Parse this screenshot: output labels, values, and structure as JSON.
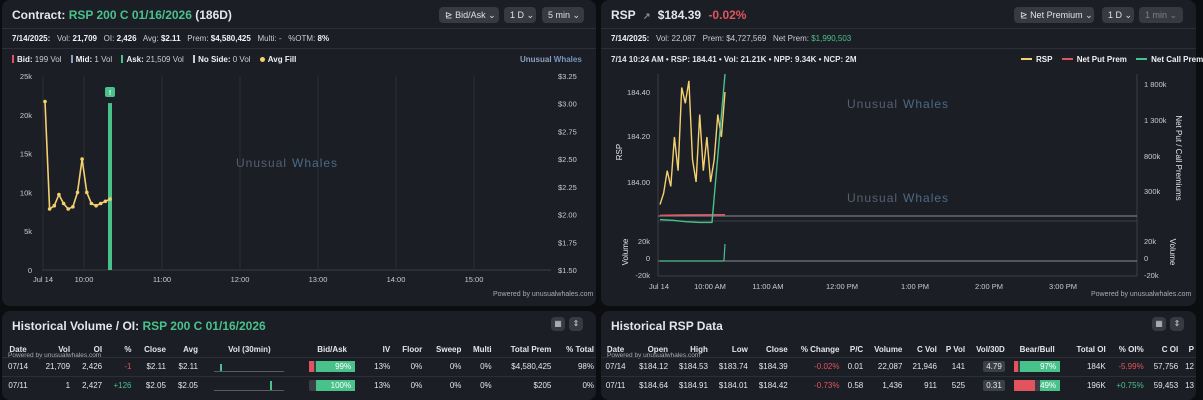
{
  "left_panel": {
    "title_prefix": "Contract:",
    "contract": "RSP 200 C 01/16/2026",
    "dte": "(186D)",
    "controls": {
      "price_type": "Bid/Ask",
      "range": "1 D",
      "interval": "5 min"
    },
    "stats": {
      "date": "7/14/2025:",
      "vol_label": "Vol:",
      "vol": "21,709",
      "oi_label": "OI:",
      "oi": "2,426",
      "avg_label": "Avg:",
      "avg": "$2.11",
      "prem_label": "Prem:",
      "prem": "$4,580,425",
      "multi_label": "Multi:",
      "multi": "-",
      "otm_label": "%OTM:",
      "otm": "8%"
    },
    "legend": {
      "bid_label": "Bid:",
      "bid": "199 Vol",
      "mid_label": "Mid:",
      "mid": "1 Vol",
      "ask_label": "Ask:",
      "ask": "21,509 Vol",
      "noside_label": "No Side:",
      "noside": "0 Vol",
      "avgfill": "Avg Fill"
    },
    "brand_a": "Unusual",
    "brand_b": "Whales",
    "watermark_a": "Unusual",
    "watermark_b": "Whales",
    "powered": "Powered by unusualwhales.com",
    "marker": "!"
  },
  "right_panel": {
    "ticker": "RSP",
    "price": "$184.39",
    "change": "-0.02%",
    "controls": {
      "metric": "Net Premium",
      "range": "1 D",
      "interval": "1 min"
    },
    "stats": {
      "date": "7/14/2025:",
      "vol_label": "Vol:",
      "vol": "22,087",
      "prem_label": "Prem:",
      "prem": "$4,727,569",
      "netprem_label": "Net Prem:",
      "netprem": "$1,990,503"
    },
    "readout": "7/14 10:24 AM • RSP: 184.41 • Vol: 21.21K • NPP: 9.34K • NCP: 2M",
    "legend": {
      "rsp": "RSP",
      "npp": "Net Put Prem",
      "ncp": "Net Call Prem"
    },
    "watermark_a": "Unusual",
    "watermark_b": "Whales",
    "powered": "Powered by unusualwhales.com",
    "axis_left": "RSP",
    "axis_right": "Net Put / Call Premiums",
    "axis_vol_left": "Volume",
    "axis_vol_right": "Volume"
  },
  "chart_data": [
    {
      "type": "line",
      "x_ticks": [
        "Jul 14",
        "10:00",
        "11:00",
        "12:00",
        "13:00",
        "14:00",
        "15:00"
      ],
      "y_left_ticks": [
        "25k",
        "20k",
        "15k",
        "10k",
        "5k",
        "0"
      ],
      "y_right_ticks": [
        "$3.25",
        "$3.00",
        "$2.75",
        "$2.50",
        "$2.25",
        "$2.00",
        "$1.75",
        "$1.50"
      ],
      "ylim_left": [
        0,
        25000
      ],
      "ylim_right": [
        1.5,
        3.25
      ],
      "series": [
        {
          "name": "Avg Fill",
          "values": [
            3.02,
            2.05,
            2.08,
            2.18,
            2.1,
            2.05,
            2.07,
            2.2,
            2.5,
            2.2,
            2.1,
            2.08,
            2.1,
            2.12,
            2.14
          ]
        },
        {
          "name": "Ask",
          "values": [
            21509
          ]
        }
      ]
    },
    {
      "type": "line",
      "x_ticks": [
        "Jul 14",
        "10:00 AM",
        "11:00 AM",
        "12:00 PM",
        "1:00 PM",
        "2:00 PM",
        "3:00 PM"
      ],
      "y_left_ticks": [
        "184.40",
        "184.20",
        "184.00"
      ],
      "y_right_ticks": [
        "1 800k",
        "1 300k",
        "800k",
        "300k"
      ],
      "vol_left_ticks": [
        "20k",
        "0",
        "-20k"
      ],
      "vol_right_ticks": [
        "20k",
        "0",
        "-20k"
      ],
      "series": [
        {
          "name": "RSP",
          "values": [
            183.9,
            183.95,
            184.05,
            183.98,
            184.2,
            184.05,
            184.42,
            184.35,
            184.45,
            184.1,
            184.0,
            184.3,
            184.05,
            184.2,
            184.0,
            184.1,
            184.3,
            184.2,
            184.4
          ]
        },
        {
          "name": "Net Put Prem",
          "values": [
            5,
            6,
            8,
            8,
            9,
            9
          ]
        },
        {
          "name": "Net Call Prem",
          "values": [
            -50,
            -60,
            -80,
            -90,
            -90,
            2000
          ]
        }
      ]
    }
  ],
  "hist_left": {
    "title": "Historical Volume / OI:",
    "contract": "RSP 200 C 01/16/2026",
    "powered": "Powered by unusualwhales.com",
    "columns": [
      "Date",
      "Vol",
      "OI",
      "%",
      "Close",
      "Avg",
      "Vol (30min)",
      "Bid/Ask",
      "IV",
      "Floor",
      "Sweep",
      "Multi",
      "Total Prem",
      "% Total"
    ],
    "rows": [
      {
        "date": "07/14",
        "vol": "21,709",
        "oi": "2,426",
        "pct": "-1",
        "close": "$2.11",
        "avg": "$2.11",
        "bidask": "99%",
        "bidask_frac": 0.99,
        "iv": "13%",
        "floor": "0%",
        "sweep": "0%",
        "multi": "0%",
        "prem": "$4,580,425",
        "ptotal": "98%"
      },
      {
        "date": "07/11",
        "vol": "1",
        "oi": "2,427",
        "pct": "+126",
        "close": "$2.05",
        "avg": "$2.05",
        "bidask": "100%",
        "bidask_frac": 1.0,
        "iv": "13%",
        "floor": "0%",
        "sweep": "0%",
        "multi": "0%",
        "prem": "$205",
        "ptotal": "0%"
      }
    ]
  },
  "hist_right": {
    "title": "Historical RSP Data",
    "powered": "Powered by unusualwhales.com",
    "columns": [
      "Date",
      "Open",
      "High",
      "Low",
      "Close",
      "% Change",
      "P/C",
      "Volume",
      "C Vol",
      "P Vol",
      "Vol/30D",
      "Bear/Bull",
      "Total OI",
      "% OI%",
      "C OI",
      "P"
    ],
    "rows": [
      {
        "date": "07/14",
        "open": "$184.12",
        "high": "$184.53",
        "low": "$183.74",
        "close": "$184.39",
        "chg": "-0.02%",
        "pc": "0.01",
        "volume": "22,087",
        "cvol": "21,946",
        "pvol": "141",
        "v30": "4.79",
        "bb": "97%",
        "bb_frac": 0.97,
        "toi": "184K",
        "oip": "-5.99%",
        "coi": "57,756",
        "p": "12"
      },
      {
        "date": "07/11",
        "open": "$184.64",
        "high": "$184.91",
        "low": "$184.01",
        "close": "$184.42",
        "chg": "-0.73%",
        "pc": "0.58",
        "volume": "1,436",
        "cvol": "911",
        "pvol": "525",
        "v30": "0.31",
        "bb": "49%",
        "bb_frac": 0.49,
        "toi": "196K",
        "oip": "+0.75%",
        "coi": "59,453",
        "p": "13"
      }
    ]
  }
}
